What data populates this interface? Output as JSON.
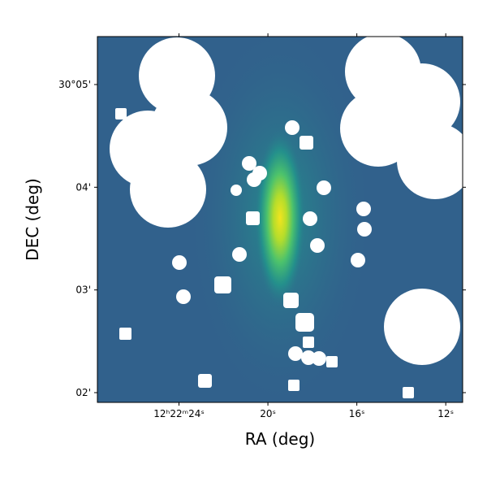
{
  "chart_data": {
    "type": "image",
    "xlabel": "RA (deg)",
    "ylabel": "DEC (deg)",
    "xlim": [
      27.67,
      11.24
    ],
    "ylim": [
      1.905,
      5.467
    ],
    "xticks": [
      {
        "value": 24,
        "label": "12ʰ22ᵐ24ˢ"
      },
      {
        "value": 20,
        "label": "20ˢ"
      },
      {
        "value": 16,
        "label": "16ˢ"
      },
      {
        "value": 12,
        "label": "12ˢ"
      }
    ],
    "yticks": [
      {
        "value": 5,
        "label": "30°05'"
      },
      {
        "value": 4,
        "label": "04'"
      },
      {
        "value": 3,
        "label": "03'"
      },
      {
        "value": 2,
        "label": "02'"
      }
    ]
  }
}
